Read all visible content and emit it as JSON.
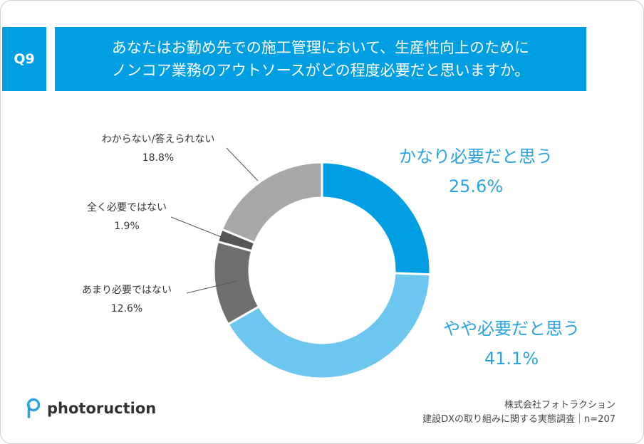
{
  "question": {
    "number": "Q9",
    "line1": "あなたはお勤め先での施工管理において、生産性向上のために",
    "line2": "ノンコア業務のアウトソースがどの程度必要だと思いますか。"
  },
  "chart_data": {
    "type": "pie",
    "donut": true,
    "title": "あなたはお勤め先での施工管理において、生産性向上のためにノンコア業務のアウトソースがどの程度必要だと思いますか。",
    "n": 207,
    "slices": [
      {
        "label": "かなり必要だと思う",
        "value": 25.6,
        "display": "25.6%",
        "color": "#009fe3"
      },
      {
        "label": "やや必要だと思う",
        "value": 41.1,
        "display": "41.1%",
        "color": "#6cc6ef"
      },
      {
        "label": "あまり必要ではない",
        "value": 12.6,
        "display": "12.6%",
        "color": "#6f6f6f"
      },
      {
        "label": "全く必要ではない",
        "value": 1.9,
        "display": "1.9%",
        "color": "#555555"
      },
      {
        "label": "わからない/答えられない",
        "value": 18.8,
        "display": "18.8%",
        "color": "#a8a8a8"
      }
    ]
  },
  "brand": {
    "logo_text": "photoruction",
    "accent": "#009fe3"
  },
  "source": {
    "company": "株式会社フォトラクション",
    "survey": "建設DXの取り組みに関する実態調査｜n=207"
  }
}
